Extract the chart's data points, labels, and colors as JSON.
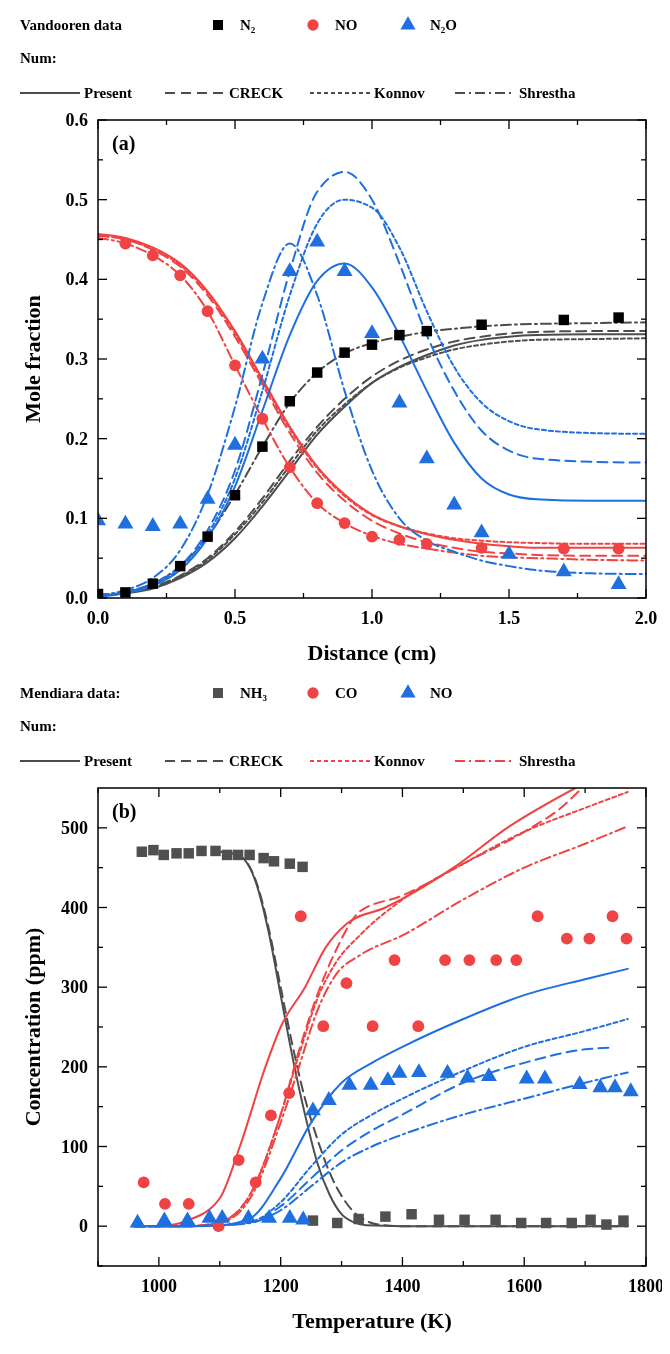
{
  "chart_data": [
    {
      "type": "line",
      "xlabel": "Distance (cm)",
      "ylabel": "Mole fraction",
      "legend_title": "Vandooren data",
      "legend": "top",
      "annotations": [
        "(a)",
        "Num:"
      ],
      "xlim": [
        0,
        2
      ],
      "ylim": [
        0,
        0.6
      ],
      "xticks": [
        {
          "value": 0,
          "label": "0.0"
        },
        {
          "value": 0.25,
          "label": null
        },
        {
          "value": 0.5,
          "label": "0.5"
        },
        {
          "value": 0.75,
          "label": null
        },
        {
          "value": 1,
          "label": "1.0"
        },
        {
          "value": 1.25,
          "label": null
        },
        {
          "value": 1.5,
          "label": "1.5"
        },
        {
          "value": 1.75,
          "label": null
        },
        {
          "value": 2,
          "label": "2.0"
        }
      ],
      "yticks": [
        {
          "value": 0,
          "label": "0.0"
        },
        {
          "value": 0.05,
          "label": null
        },
        {
          "value": 0.1,
          "label": "0.1"
        },
        {
          "value": 0.15,
          "label": null
        },
        {
          "value": 0.2,
          "label": "0.2"
        },
        {
          "value": 0.25,
          "label": null
        },
        {
          "value": 0.3,
          "label": "0.3"
        },
        {
          "value": 0.35,
          "label": null
        },
        {
          "value": 0.4,
          "label": "0.4"
        },
        {
          "value": 0.45,
          "label": null
        },
        {
          "value": 0.5,
          "label": "0.5"
        },
        {
          "value": 0.55,
          "label": null
        },
        {
          "value": 0.6,
          "label": "0.6"
        }
      ],
      "x": [
        0,
        0.1,
        0.2,
        0.3,
        0.4,
        0.5,
        0.6,
        0.7,
        0.8,
        0.9,
        1.0,
        1.1,
        1.2,
        1.3,
        1.4,
        1.5,
        1.6,
        1.8,
        2.0
      ],
      "series": [
        {
          "type": "scatter",
          "name": "N₂",
          "color": "#000000",
          "marker": "square",
          "x": [
            0,
            0.1,
            0.2,
            0.3,
            0.4,
            0.5,
            0.6,
            0.7,
            0.8,
            0.9,
            1.0,
            1.1,
            1.2,
            1.4,
            1.7,
            1.9
          ],
          "values": [
            0.005,
            0.007,
            0.018,
            0.04,
            0.077,
            0.129,
            0.19,
            0.247,
            0.283,
            0.308,
            0.318,
            0.33,
            0.335,
            0.343,
            0.349,
            0.352
          ]
        },
        {
          "type": "scatter",
          "name": "NO",
          "color": "#f04343",
          "marker": "circle",
          "x": [
            0.1,
            0.2,
            0.3,
            0.4,
            0.5,
            0.6,
            0.7,
            0.8,
            0.9,
            1.0,
            1.1,
            1.2,
            1.4,
            1.7,
            1.9
          ],
          "values": [
            0.445,
            0.43,
            0.405,
            0.36,
            0.292,
            0.225,
            0.164,
            0.119,
            0.094,
            0.077,
            0.073,
            0.068,
            0.063,
            0.062,
            0.062
          ]
        },
        {
          "type": "scatter",
          "name": "N₂O",
          "color": "#1f6fde",
          "marker": "triangle",
          "x": [
            0,
            0.1,
            0.2,
            0.3,
            0.4,
            0.5,
            0.6,
            0.7,
            0.8,
            0.9,
            1.0,
            1.1,
            1.2,
            1.3,
            1.4,
            1.5,
            1.7,
            1.9
          ],
          "values": [
            0.097,
            0.093,
            0.09,
            0.093,
            0.124,
            0.192,
            0.3,
            0.41,
            0.447,
            0.41,
            0.332,
            0.245,
            0.175,
            0.117,
            0.082,
            0.055,
            0.033,
            0.017
          ]
        },
        {
          "type": "line",
          "name": "Present",
          "color": "#4d4d4d",
          "line_style": "solid",
          "values": [
            0.003,
            0.006,
            0.012,
            0.025,
            0.045,
            0.075,
            0.115,
            0.16,
            0.205,
            0.24,
            0.27,
            0.29,
            0.305,
            0.317,
            0.324,
            0.328,
            0.33,
            0.331,
            0.331
          ]
        },
        {
          "type": "line",
          "name": "CRECK",
          "color": "#4d4d4d",
          "line_style": "dashed",
          "values": [
            0.003,
            0.007,
            0.014,
            0.028,
            0.05,
            0.083,
            0.125,
            0.172,
            0.215,
            0.25,
            0.278,
            0.298,
            0.312,
            0.322,
            0.328,
            0.332,
            0.334,
            0.335,
            0.335
          ]
        },
        {
          "type": "line",
          "name": "Konnov",
          "color": "#4d4d4d",
          "line_style": "dotted",
          "values": [
            0.003,
            0.007,
            0.013,
            0.027,
            0.048,
            0.08,
            0.12,
            0.166,
            0.21,
            0.243,
            0.27,
            0.289,
            0.302,
            0.312,
            0.318,
            0.322,
            0.324,
            0.325,
            0.326
          ]
        },
        {
          "type": "line",
          "name": "Shrestha",
          "color": "#4d4d4d",
          "line_style": "dashdot",
          "values": [
            0.004,
            0.008,
            0.018,
            0.04,
            0.077,
            0.13,
            0.19,
            0.245,
            0.283,
            0.307,
            0.32,
            0.328,
            0.334,
            0.338,
            0.341,
            0.343,
            0.344,
            0.345,
            0.346
          ]
        },
        {
          "type": "line",
          "color": "#f04343",
          "line_style": "solid",
          "values": [
            0.457,
            0.452,
            0.44,
            0.42,
            0.385,
            0.335,
            0.275,
            0.215,
            0.165,
            0.13,
            0.105,
            0.09,
            0.08,
            0.073,
            0.068,
            0.065,
            0.063,
            0.063,
            0.063
          ]
        },
        {
          "type": "line",
          "color": "#f04343",
          "line_style": "dashed",
          "values": [
            0.455,
            0.45,
            0.437,
            0.416,
            0.38,
            0.328,
            0.268,
            0.207,
            0.157,
            0.122,
            0.097,
            0.081,
            0.07,
            0.063,
            0.058,
            0.056,
            0.054,
            0.053,
            0.053
          ]
        },
        {
          "type": "line",
          "color": "#f04343",
          "line_style": "dotted",
          "values": [
            0.455,
            0.45,
            0.438,
            0.418,
            0.383,
            0.332,
            0.272,
            0.212,
            0.163,
            0.128,
            0.104,
            0.09,
            0.081,
            0.075,
            0.072,
            0.07,
            0.069,
            0.068,
            0.068
          ]
        },
        {
          "type": "line",
          "color": "#f04343",
          "line_style": "dashdot",
          "values": [
            0.452,
            0.445,
            0.43,
            0.405,
            0.36,
            0.292,
            0.225,
            0.164,
            0.119,
            0.094,
            0.078,
            0.068,
            0.062,
            0.057,
            0.053,
            0.051,
            0.05,
            0.048,
            0.047
          ]
        },
        {
          "type": "line",
          "color": "#1f6fde",
          "line_style": "solid",
          "values": [
            0.002,
            0.006,
            0.015,
            0.035,
            0.075,
            0.14,
            0.235,
            0.33,
            0.398,
            0.42,
            0.39,
            0.33,
            0.26,
            0.195,
            0.15,
            0.13,
            0.124,
            0.122,
            0.122
          ]
        },
        {
          "type": "line",
          "color": "#1f6fde",
          "line_style": "dashed",
          "values": [
            0.002,
            0.007,
            0.018,
            0.04,
            0.085,
            0.16,
            0.28,
            0.41,
            0.51,
            0.535,
            0.5,
            0.42,
            0.33,
            0.26,
            0.21,
            0.185,
            0.175,
            0.171,
            0.17
          ]
        },
        {
          "type": "line",
          "color": "#1f6fde",
          "line_style": "dotted",
          "values": [
            0.002,
            0.007,
            0.017,
            0.038,
            0.08,
            0.15,
            0.26,
            0.38,
            0.47,
            0.5,
            0.49,
            0.44,
            0.36,
            0.29,
            0.245,
            0.222,
            0.212,
            0.207,
            0.206
          ]
        },
        {
          "type": "line",
          "color": "#1f6fde",
          "line_style": "dashdot",
          "values": [
            0.003,
            0.01,
            0.025,
            0.06,
            0.13,
            0.24,
            0.37,
            0.445,
            0.38,
            0.26,
            0.16,
            0.1,
            0.072,
            0.058,
            0.047,
            0.04,
            0.035,
            0.031,
            0.03
          ]
        }
      ]
    },
    {
      "type": "line",
      "xlabel": "Temperature (K)",
      "ylabel": "Concentration (ppm)",
      "legend_title": "Mendiara data:",
      "legend": "top",
      "annotations": [
        "(b)",
        "Num:"
      ],
      "xlim": [
        900,
        1800
      ],
      "ylim": [
        -50,
        550
      ],
      "xticks": [
        {
          "value": 900,
          "label": null
        },
        1000,
        {
          "value": 1100,
          "label": null
        },
        1200,
        {
          "value": 1300,
          "label": null
        },
        1400,
        {
          "value": 1500,
          "label": null
        },
        1600,
        {
          "value": 1700,
          "label": null
        },
        1800
      ],
      "yticks": [
        {
          "value": -50,
          "label": null
        },
        0,
        {
          "value": 50,
          "label": null
        },
        100,
        {
          "value": 150,
          "label": null
        },
        200,
        {
          "value": 250,
          "label": null
        },
        300,
        {
          "value": 350,
          "label": null
        },
        400,
        {
          "value": 450,
          "label": null
        },
        500
      ],
      "series": [
        {
          "type": "scatter",
          "name": "NH₃",
          "color": "#505050",
          "marker": "square",
          "x": [
            972,
            991,
            1008,
            1029,
            1049,
            1070,
            1093,
            1112,
            1130,
            1149,
            1172,
            1189,
            1215,
            1236,
            1253,
            1293,
            1328,
            1372,
            1415,
            1460,
            1502,
            1553,
            1595,
            1636,
            1678,
            1709,
            1735,
            1763
          ],
          "values": [
            470,
            472,
            466,
            468,
            468,
            471,
            471,
            466,
            466,
            466,
            462,
            458,
            455,
            451,
            7,
            4,
            9,
            12,
            15,
            8,
            8,
            8,
            4,
            4,
            4,
            8,
            2,
            7
          ]
        },
        {
          "type": "scatter",
          "name": "CO",
          "color": "#f04343",
          "marker": "circle",
          "x": [
            975,
            1010,
            1049,
            1098,
            1131,
            1159,
            1184,
            1214,
            1233,
            1270,
            1308,
            1351,
            1387,
            1426,
            1470,
            1510,
            1554,
            1587,
            1622,
            1670,
            1707,
            1745,
            1768
          ],
          "values": [
            55,
            28,
            28,
            0,
            83,
            55,
            139,
            167,
            389,
            251,
            305,
            251,
            334,
            251,
            334,
            334,
            334,
            334,
            389,
            361,
            361,
            389,
            361
          ]
        },
        {
          "type": "scatter",
          "name": "NO",
          "color": "#1f6fde",
          "marker": "triangle",
          "x": [
            965,
            1009,
            1047,
            1083,
            1104,
            1147,
            1181,
            1215,
            1237,
            1253,
            1279,
            1313,
            1348,
            1376,
            1395,
            1427,
            1474,
            1507,
            1542,
            1604,
            1634,
            1691,
            1725,
            1749,
            1775
          ],
          "values": [
            4,
            7,
            7,
            10,
            10,
            10,
            10,
            10,
            8,
            145,
            158,
            177,
            177,
            183,
            192,
            193,
            192,
            186,
            188,
            185,
            185,
            178,
            174,
            174,
            169
          ]
        },
        {
          "type": "line",
          "name": "Present",
          "color": "#4d4d4d",
          "line_style": "solid",
          "x": [
            1100,
            1130,
            1160,
            1180,
            1200,
            1220,
            1240,
            1260,
            1280,
            1300,
            1320,
            1340,
            1400,
            1600,
            1770
          ],
          "values": [
            470,
            466,
            430,
            370,
            290,
            210,
            140,
            80,
            40,
            15,
            5,
            1,
            0,
            0,
            0
          ]
        },
        {
          "type": "line",
          "name": "CRECK",
          "color": "#4d4d4d",
          "line_style": "dashed",
          "x": [
            1100,
            1130,
            1160,
            1180,
            1200,
            1220,
            1240,
            1260,
            1280,
            1300,
            1320,
            1340,
            1360,
            1400,
            1770
          ],
          "values": [
            470,
            466,
            432,
            375,
            300,
            225,
            160,
            110,
            68,
            38,
            18,
            7,
            2,
            0,
            0
          ]
        },
        {
          "type": "line",
          "color": "#f04343",
          "line_style": "solid",
          "x": [
            960,
            1000,
            1050,
            1100,
            1133,
            1175,
            1200,
            1240,
            1274,
            1309,
            1372,
            1484,
            1572,
            1684
          ],
          "values": [
            0,
            0,
            8,
            35,
            100,
            200,
            250,
            300,
            350,
            380,
            400,
            450,
            500,
            550
          ]
        },
        {
          "type": "line",
          "color": "#f04343",
          "line_style": "dashed",
          "x": [
            960,
            1050,
            1100,
            1150,
            1200,
            1230,
            1260,
            1290,
            1330,
            1400,
            1500,
            1600,
            1660,
            1695
          ],
          "values": [
            0,
            0,
            5,
            40,
            140,
            220,
            290,
            345,
            395,
            415,
            455,
            495,
            525,
            550
          ]
        },
        {
          "type": "line",
          "name": "Konnov",
          "color": "#f04343",
          "line_style": "dotted",
          "x": [
            960,
            1050,
            1100,
            1150,
            1200,
            1230,
            1260,
            1290,
            1330,
            1400,
            1500,
            1600,
            1700,
            1770
          ],
          "values": [
            0,
            0,
            5,
            40,
            140,
            215,
            285,
            330,
            365,
            410,
            455,
            495,
            525,
            545
          ]
        },
        {
          "type": "line",
          "name": "Shrestha",
          "color": "#f04343",
          "line_style": "dashdot",
          "x": [
            960,
            1050,
            1100,
            1150,
            1200,
            1230,
            1260,
            1290,
            1330,
            1400,
            1500,
            1600,
            1700,
            1770
          ],
          "values": [
            0,
            0,
            4,
            35,
            130,
            200,
            270,
            315,
            340,
            365,
            410,
            450,
            480,
            502
          ]
        },
        {
          "type": "line",
          "color": "#1f6fde",
          "line_style": "solid",
          "x": [
            960,
            1050,
            1100,
            1150,
            1200,
            1250,
            1300,
            1350,
            1400,
            1500,
            1600,
            1700,
            1770
          ],
          "values": [
            0,
            0,
            1,
            10,
            60,
            130,
            180,
            205,
            225,
            260,
            290,
            310,
            323
          ]
        },
        {
          "type": "line",
          "color": "#1f6fde",
          "line_style": "dashed",
          "x": [
            960,
            1050,
            1100,
            1150,
            1200,
            1250,
            1300,
            1350,
            1400,
            1500,
            1600,
            1700,
            1740
          ],
          "values": [
            0,
            0,
            1,
            5,
            25,
            60,
            95,
            120,
            140,
            180,
            205,
            222,
            224
          ]
        },
        {
          "type": "line",
          "color": "#1f6fde",
          "line_style": "dotted",
          "x": [
            960,
            1050,
            1100,
            1150,
            1200,
            1250,
            1300,
            1350,
            1400,
            1500,
            1600,
            1700,
            1770
          ],
          "values": [
            0,
            0,
            1,
            5,
            30,
            75,
            115,
            140,
            160,
            195,
            225,
            245,
            260
          ]
        },
        {
          "type": "line",
          "color": "#1f6fde",
          "line_style": "dashdot",
          "x": [
            960,
            1050,
            1100,
            1150,
            1200,
            1250,
            1300,
            1350,
            1400,
            1500,
            1600,
            1700,
            1770
          ],
          "values": [
            0,
            0,
            1,
            4,
            20,
            50,
            80,
            100,
            115,
            140,
            160,
            180,
            193
          ]
        }
      ]
    }
  ]
}
